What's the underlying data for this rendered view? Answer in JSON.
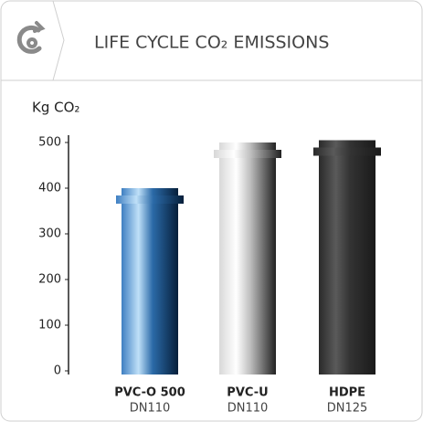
{
  "chart_data": {
    "type": "bar",
    "title": "LIFE CYCLE CO₂ EMISSIONS",
    "y_label": "Kg CO₂",
    "categories": [
      "PVC-O 500",
      "PVC-U",
      "HDPE"
    ],
    "sizes": [
      "DN110",
      "DN110",
      "DN125"
    ],
    "values": [
      400,
      500,
      505
    ],
    "colors": [
      [
        "#3f7fc2",
        "#bfe0f8",
        "#2b6aa8",
        "#061f3a"
      ],
      [
        "#d8d8d8",
        "#ffffff",
        "#bdbdbd",
        "#222222"
      ],
      [
        "#2a2a2a",
        "#5a5a5a",
        "#333333",
        "#1a1a1a"
      ]
    ],
    "ylim": [
      0,
      500
    ],
    "yticks": [
      0,
      100,
      200,
      300,
      400,
      500
    ]
  }
}
